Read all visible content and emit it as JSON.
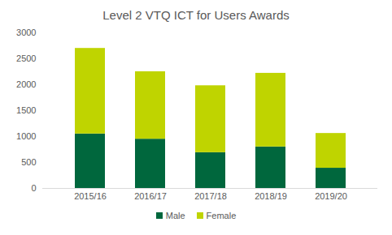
{
  "chart_data": {
    "type": "bar",
    "title": "Level 2 VTQ ICT for Users Awards",
    "stacked": true,
    "categories": [
      "2015/16",
      "2016/17",
      "2017/18",
      "2018/19",
      "2019/20"
    ],
    "series": [
      {
        "name": "Male",
        "color": "#00673d",
        "values": [
          1050,
          950,
          690,
          800,
          390
        ]
      },
      {
        "name": "Female",
        "color": "#bfd400",
        "values": [
          1650,
          1300,
          1290,
          1420,
          670
        ]
      }
    ],
    "ylim": [
      0,
      3000
    ],
    "yticks": [
      0,
      500,
      1000,
      1500,
      2000,
      2500,
      3000
    ],
    "grid": false,
    "legend": "bottom"
  }
}
